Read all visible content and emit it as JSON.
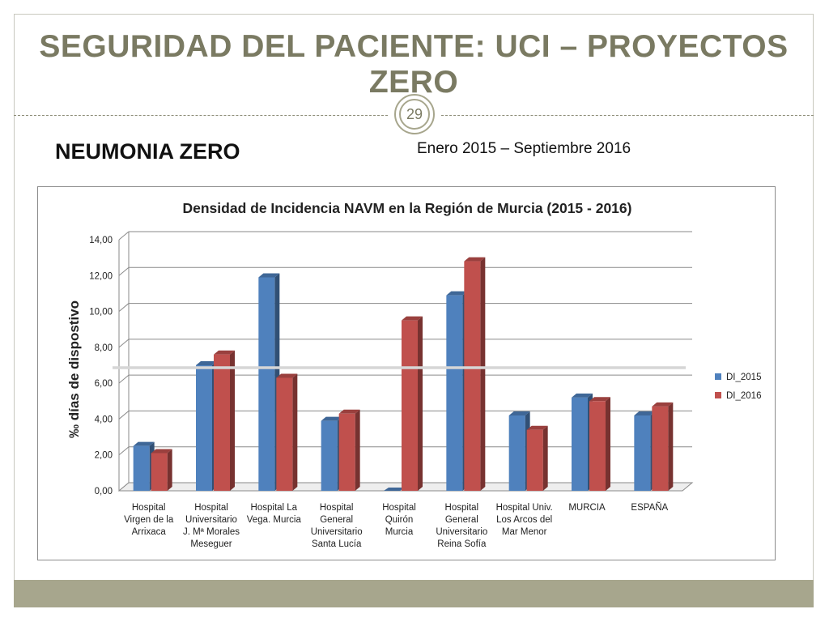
{
  "slide": {
    "title": "SEGURIDAD DEL PACIENTE: UCI – PROYECTOS ZERO",
    "page_number": "29",
    "subtitle": "NEUMONIA ZERO",
    "period": "Enero 2015 – Septiembre  2016"
  },
  "colors": {
    "series_2015": "#4f81bd",
    "series_2016": "#c0504d",
    "title_text": "#7a7a62",
    "footer_bar": "#a7a68d"
  },
  "chart_data": {
    "type": "bar",
    "title": "Densidad de Incidencia NAVM en la Región de Murcia (2015 - 2016)",
    "xlabel": "",
    "ylabel": "‰ días de dispostivo",
    "ylim": [
      0,
      14
    ],
    "yticks": [
      "0,00",
      "2,00",
      "4,00",
      "6,00",
      "8,00",
      "10,00",
      "12,00",
      "14,00"
    ],
    "grid": true,
    "legend_position": "right",
    "reference_line": 7.0,
    "categories": [
      [
        "Hospital",
        "Virgen de la",
        "Arrixaca"
      ],
      [
        "Hospital",
        "Universitario",
        "J. Mª Morales",
        "Meseguer"
      ],
      [
        "Hospital La",
        "Vega. Murcia"
      ],
      [
        "Hospital",
        "General",
        "Universitario",
        "Santa Lucía"
      ],
      [
        "Hospital",
        "Quirón",
        "Murcia"
      ],
      [
        "Hospital",
        "General",
        "Universitario",
        "Reina Sofía"
      ],
      [
        "Hospital Univ.",
        "Los Arcos del",
        "Mar Menor"
      ],
      [
        "MURCIA"
      ],
      [
        "ESPAÑA"
      ]
    ],
    "series": [
      {
        "name": "DI_2015",
        "values": [
          2.5,
          7.0,
          11.9,
          3.9,
          0.0,
          10.9,
          4.2,
          5.2,
          4.2
        ]
      },
      {
        "name": "DI_2016",
        "values": [
          2.1,
          7.6,
          6.3,
          4.3,
          9.5,
          12.8,
          3.4,
          5.0,
          4.7
        ]
      }
    ]
  }
}
